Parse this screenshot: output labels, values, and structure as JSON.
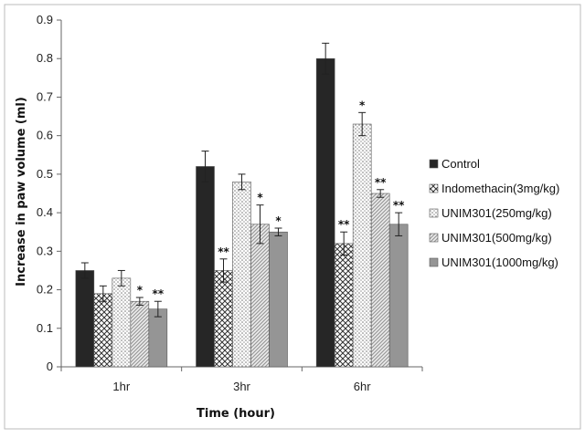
{
  "chart_data": {
    "type": "bar",
    "title": "",
    "xlabel": "Time (hour)",
    "ylabel": "Increase in paw volume (ml)",
    "ylim": [
      0,
      0.9
    ],
    "yticks": [
      "0",
      "0.1",
      "0.2",
      "0.3",
      "0.4",
      "0.5",
      "0.6",
      "0.7",
      "0.8",
      "0.9"
    ],
    "categories": [
      "1hr",
      "3hr",
      "6hr"
    ],
    "legend_position": "right",
    "grid": false,
    "series": [
      {
        "name": "Control",
        "pattern": "solid-dark",
        "values": [
          0.25,
          0.52,
          0.8
        ],
        "errors": [
          0.02,
          0.04,
          0.04
        ],
        "sig": [
          "",
          "",
          ""
        ]
      },
      {
        "name": "Indomethacin(3mg/kg)",
        "pattern": "crosshatch",
        "values": [
          0.19,
          0.25,
          0.32
        ],
        "errors": [
          0.02,
          0.03,
          0.03
        ],
        "sig": [
          "",
          "**",
          "**"
        ]
      },
      {
        "name": "UNIM301(250mg/kg)",
        "pattern": "dotted",
        "values": [
          0.23,
          0.48,
          0.63
        ],
        "errors": [
          0.02,
          0.02,
          0.03
        ],
        "sig": [
          "",
          "",
          "*"
        ]
      },
      {
        "name": "UNIM301(500mg/kg)",
        "pattern": "diagonal",
        "values": [
          0.17,
          0.37,
          0.45
        ],
        "errors": [
          0.01,
          0.05,
          0.01
        ],
        "sig": [
          "*",
          "*",
          "**"
        ]
      },
      {
        "name": "UNIM301(1000mg/kg)",
        "pattern": "solid-gray",
        "values": [
          0.15,
          0.35,
          0.37
        ],
        "errors": [
          0.02,
          0.01,
          0.03
        ],
        "sig": [
          "**",
          "*",
          "**"
        ]
      }
    ]
  }
}
